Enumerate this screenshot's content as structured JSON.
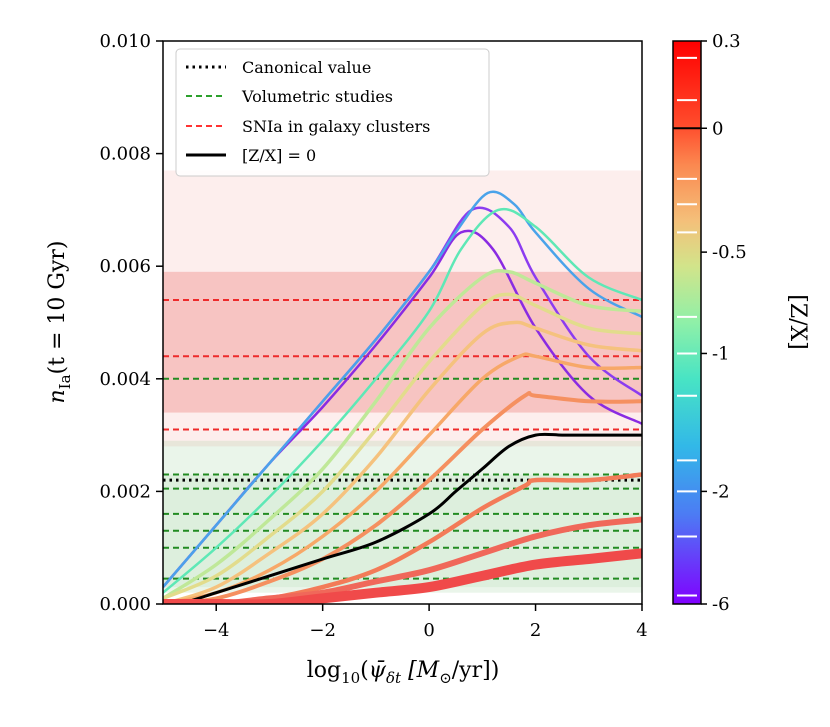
{
  "chart_data": {
    "type": "line",
    "ylabel": "n_Ia(t = 10 Gyr)",
    "ylabel_parts": {
      "n": "n",
      "sub": "Ia",
      "rest": "(t = 10 Gyr)"
    },
    "xlabel": "log10(ψ̄δt [M⊙/yr])",
    "xlabel_parts": {
      "log": "log",
      "sub10": "10",
      "open": "(",
      "psi": "ψ̄",
      "psisub": "δt",
      "unit": " [M",
      "sun": "⊙",
      "tail": "/yr])"
    },
    "xlim": [
      -5,
      4
    ],
    "ylim": [
      0,
      0.01
    ],
    "x_ticks": [
      {
        "value": -4,
        "label": "−4"
      },
      {
        "value": -2,
        "label": "−2"
      },
      {
        "value": 0,
        "label": "0"
      },
      {
        "value": 2,
        "label": "2"
      },
      {
        "value": 4,
        "label": "4"
      }
    ],
    "y_ticks": [
      {
        "value": 0,
        "label": "0.000"
      },
      {
        "value": 0.002,
        "label": "0.002"
      },
      {
        "value": 0.004,
        "label": "0.004"
      },
      {
        "value": 0.006,
        "label": "0.006"
      },
      {
        "value": 0.008,
        "label": "0.008"
      },
      {
        "value": 0.01,
        "label": "0.010"
      }
    ],
    "legend": {
      "placement": "top-left",
      "entries": [
        {
          "label": "Canonical value",
          "style": "dotted",
          "color": "#000000"
        },
        {
          "label": "Volumetric studies",
          "style": "dashed",
          "color": "#2ca02c"
        },
        {
          "label": "SNIa in galaxy clusters",
          "style": "dashed",
          "color": "#ff3333"
        },
        {
          "label": "[Z/X] = 0",
          "style": "solid",
          "color": "#000000"
        }
      ]
    },
    "bands": [
      {
        "group": "clusters",
        "low": 0.0034,
        "high": 0.0059,
        "color": "#e8524a",
        "opacity": 0.28
      },
      {
        "group": "clusters",
        "low": 0.0028,
        "high": 0.0077,
        "color": "#ef8a82",
        "opacity": 0.14
      },
      {
        "group": "volumetric",
        "low": 0.0002,
        "high": 0.0029,
        "color": "#6cb86c",
        "opacity": 0.14
      },
      {
        "group": "volumetric",
        "low": 0.0003,
        "high": 0.0023,
        "color": "#6cb86c",
        "opacity": 0.1
      }
    ],
    "hlines": [
      {
        "y": 0.0022,
        "group": "canonical",
        "color": "#000000",
        "dash": "dotted"
      },
      {
        "y": 0.0054,
        "group": "clusters",
        "color": "#ee2a2a",
        "dash": "dashed"
      },
      {
        "y": 0.0044,
        "group": "clusters",
        "color": "#ee2a2a",
        "dash": "dashed"
      },
      {
        "y": 0.0031,
        "group": "clusters",
        "color": "#ee2a2a",
        "dash": "dashed"
      },
      {
        "y": 0.004,
        "group": "volumetric",
        "color": "#228b22",
        "dash": "dashed"
      },
      {
        "y": 0.0023,
        "group": "volumetric",
        "color": "#228b22",
        "dash": "dashed"
      },
      {
        "y": 0.00205,
        "group": "volumetric",
        "color": "#228b22",
        "dash": "dashed"
      },
      {
        "y": 0.0016,
        "group": "volumetric",
        "color": "#228b22",
        "dash": "dashed"
      },
      {
        "y": 0.0013,
        "group": "volumetric",
        "color": "#228b22",
        "dash": "dashed"
      },
      {
        "y": 0.001,
        "group": "volumetric",
        "color": "#228b22",
        "dash": "dashed"
      },
      {
        "y": 0.00045,
        "group": "volumetric",
        "color": "#228b22",
        "dash": "dashed"
      }
    ],
    "series": [
      {
        "name": "[Z/X]=-6 (a)",
        "color": "#8a2be2",
        "width": 2.5,
        "x": [
          -5,
          -4,
          -3,
          -2,
          -1,
          0,
          0.6,
          1.2,
          2,
          3,
          4
        ],
        "y": [
          0.0003,
          0.0014,
          0.0025,
          0.0035,
          0.0046,
          0.0058,
          0.0066,
          0.0063,
          0.0049,
          0.0037,
          0.0032
        ]
      },
      {
        "name": "[Z/X]=-6 (b)",
        "color": "#8c3cf0",
        "width": 2.5,
        "x": [
          -5,
          -4,
          -3,
          -2,
          -1,
          0,
          0.8,
          1.5,
          2,
          3,
          4
        ],
        "y": [
          0.0003,
          0.0014,
          0.0025,
          0.0036,
          0.0047,
          0.0059,
          0.007,
          0.0067,
          0.0058,
          0.0044,
          0.0037
        ]
      },
      {
        "name": "[Z/X]=-2",
        "color": "#4aa3ea",
        "width": 2.5,
        "x": [
          -5,
          -4,
          -3,
          -2,
          -1,
          0,
          0.5,
          1.1,
          1.6,
          2,
          3,
          4
        ],
        "y": [
          0.0003,
          0.0014,
          0.0025,
          0.0036,
          0.0047,
          0.0059,
          0.0066,
          0.0073,
          0.0071,
          0.0066,
          0.0056,
          0.0051
        ]
      },
      {
        "name": "[Z/X]=-1.3",
        "color": "#5ee8b6",
        "width": 2.5,
        "x": [
          -5,
          -4,
          -3,
          -2,
          -1,
          0,
          0.6,
          1.3,
          2,
          3,
          4
        ],
        "y": [
          0.0002,
          0.001,
          0.0019,
          0.0029,
          0.004,
          0.0052,
          0.0063,
          0.007,
          0.0067,
          0.0058,
          0.0054
        ]
      },
      {
        "name": "[Z/X]=-0.6",
        "color": "#bfe898",
        "width": 3.5,
        "x": [
          -5,
          -4,
          -3,
          -2,
          -1,
          0,
          1,
          1.5,
          2,
          3,
          4
        ],
        "y": [
          0.0001,
          0.0007,
          0.0015,
          0.0024,
          0.0036,
          0.0049,
          0.0058,
          0.0059,
          0.0057,
          0.0053,
          0.0052
        ]
      },
      {
        "name": "[Z/X]=-0.5",
        "color": "#e2dc8c",
        "width": 3.5,
        "x": [
          -5,
          -4,
          -3,
          -2,
          -1,
          0,
          1,
          1.5,
          2,
          3,
          4
        ],
        "y": [
          0.0001,
          0.0005,
          0.0012,
          0.002,
          0.0031,
          0.0043,
          0.0053,
          0.0055,
          0.0053,
          0.0049,
          0.0048
        ]
      },
      {
        "name": "[Z/X]=-0.35",
        "color": "#f5c27e",
        "width": 3.5,
        "x": [
          -5,
          -4,
          -3,
          -2,
          -1,
          0,
          1,
          1.6,
          2,
          3,
          4
        ],
        "y": [
          0,
          0.0003,
          0.0009,
          0.0016,
          0.0026,
          0.0038,
          0.0048,
          0.005,
          0.0049,
          0.0046,
          0.0045
        ]
      },
      {
        "name": "[Z/X]=-0.2",
        "color": "#f7a868",
        "width": 3.5,
        "x": [
          -5,
          -4,
          -3,
          -2,
          -1,
          0,
          1,
          1.7,
          2,
          3,
          4
        ],
        "y": [
          0,
          0.0002,
          0.0006,
          0.0012,
          0.002,
          0.003,
          0.004,
          0.0044,
          0.0044,
          0.0042,
          0.0042
        ]
      },
      {
        "name": "[Z/X]=-0.1",
        "color": "#f59060",
        "width": 4,
        "x": [
          -5,
          -4,
          -3,
          -2,
          -1,
          0,
          1,
          1.8,
          2,
          3,
          4
        ],
        "y": [
          0,
          0.0001,
          0.0004,
          0.0008,
          0.0014,
          0.0022,
          0.0031,
          0.0037,
          0.0037,
          0.0036,
          0.0036
        ]
      },
      {
        "name": "[Z/X]=0",
        "color": "#000000",
        "width": 3,
        "x": [
          -5,
          -4.7,
          -4,
          -3,
          -2,
          -1,
          0,
          0.5,
          1,
          1.5,
          2,
          2.5,
          3,
          4
        ],
        "y": [
          0,
          0,
          0.0002,
          0.0005,
          0.0008,
          0.0011,
          0.0016,
          0.002,
          0.0024,
          0.0028,
          0.003,
          0.003,
          0.003,
          0.003
        ]
      },
      {
        "name": "[Z/X]=0.1",
        "color": "#f37b58",
        "width": 4.5,
        "x": [
          -5,
          -4,
          -3,
          -2,
          -1,
          0,
          1,
          1.8,
          2,
          3,
          4
        ],
        "y": [
          0,
          0,
          0.0001,
          0.0003,
          0.0006,
          0.0011,
          0.0017,
          0.0021,
          0.0022,
          0.0022,
          0.0023
        ]
      },
      {
        "name": "[Z/X]=0.2",
        "color": "#f0685a",
        "width": 6,
        "x": [
          -5,
          -4,
          -3,
          -2,
          -1,
          0,
          1,
          2,
          3,
          4
        ],
        "y": [
          0,
          0,
          0.0001,
          0.0002,
          0.0004,
          0.0006,
          0.0009,
          0.0012,
          0.0014,
          0.0015
        ]
      },
      {
        "name": "[Z/X]=0.3",
        "color": "#f04a4a",
        "width": 10,
        "x": [
          -5,
          -4,
          -3,
          -2,
          -1,
          0,
          1,
          2,
          3,
          4
        ],
        "y": [
          0,
          0,
          0,
          0.0001,
          0.0002,
          0.0003,
          0.0005,
          0.0007,
          0.0008,
          0.0009
        ]
      }
    ],
    "colorbar": {
      "label": "[Z/X]",
      "ticks": [
        {
          "label": "0.3",
          "frac": 0.0
        },
        {
          "label": "0",
          "frac": 0.155
        },
        {
          "label": "-0.5",
          "frac": 0.375
        },
        {
          "label": "-1",
          "frac": 0.555
        },
        {
          "label": "-2",
          "frac": 0.8
        },
        {
          "label": "-6",
          "frac": 1.0
        }
      ],
      "white_marks": [
        0.03,
        0.105,
        0.245,
        0.29,
        0.34,
        0.49,
        0.555,
        0.63,
        0.745,
        0.8,
        0.88,
        0.985
      ],
      "black_mark": 0.155,
      "gradient": [
        {
          "frac": 0.0,
          "color": "#ff0000"
        },
        {
          "frac": 0.15,
          "color": "#ff4c2c"
        },
        {
          "frac": 0.22,
          "color": "#fb8850"
        },
        {
          "frac": 0.32,
          "color": "#f4c07a"
        },
        {
          "frac": 0.4,
          "color": "#d2e48a"
        },
        {
          "frac": 0.5,
          "color": "#8ff0a8"
        },
        {
          "frac": 0.6,
          "color": "#48e4c4"
        },
        {
          "frac": 0.72,
          "color": "#32b8e8"
        },
        {
          "frac": 0.84,
          "color": "#4c7cf4"
        },
        {
          "frac": 1.0,
          "color": "#8000ff"
        }
      ]
    }
  }
}
